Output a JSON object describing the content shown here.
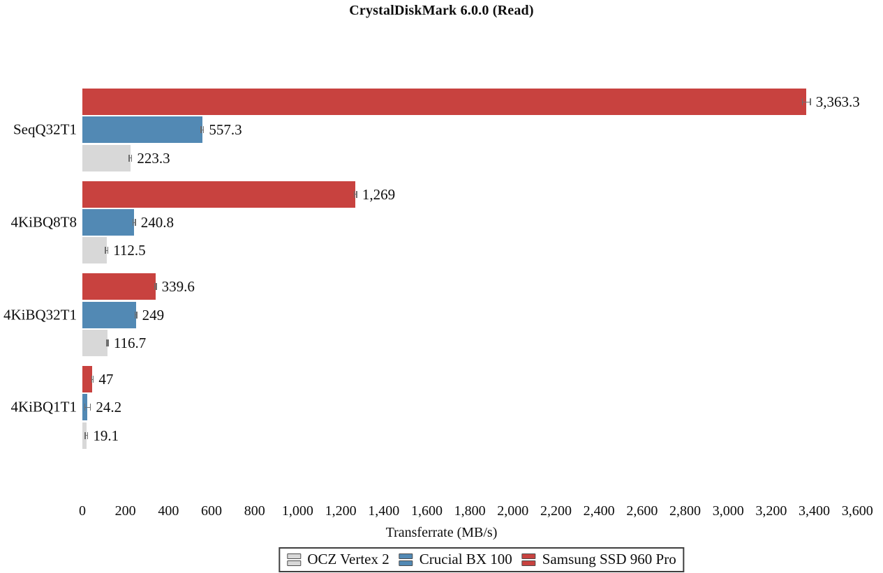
{
  "chart_data": {
    "type": "bar",
    "orientation": "horizontal",
    "title": "CrystalDiskMark 6.0.0 (Read)",
    "categories": [
      "SeqQ32T1",
      "4KiBQ8T8",
      "4KiBQ32T1",
      "4KiBQ1T1"
    ],
    "series": [
      {
        "name": "Samsung SSD 960 Pro",
        "color": "#c8423f",
        "values": [
          3363.3,
          1269,
          339.6,
          47
        ],
        "labels": [
          "3,363.3",
          "1,269",
          "339.6",
          "47"
        ],
        "errors": [
          21,
          8,
          6,
          6
        ]
      },
      {
        "name": "Crucial BX 100",
        "color": "#5289b4",
        "values": [
          557.3,
          240.8,
          249,
          24.2
        ],
        "labels": [
          "557.3",
          "240.8",
          "249",
          "24.2"
        ],
        "errors": [
          8,
          8,
          6,
          16
        ]
      },
      {
        "name": "OCZ Vertex 2",
        "color": "#d8d8d8",
        "values": [
          223.3,
          112.5,
          116.7,
          19.1
        ],
        "labels": [
          "223.3",
          "112.5",
          "116.7",
          "19.1"
        ],
        "errors": [
          8,
          8,
          6,
          8
        ]
      }
    ],
    "xlabel": "Transferrate (MB/s)",
    "xlim": [
      0,
      3600
    ],
    "xtick_step": 200,
    "xtick_labels": [
      "0",
      "200",
      "400",
      "600",
      "800",
      "1,000",
      "1,200",
      "1,400",
      "1,600",
      "1,800",
      "2,000",
      "2,200",
      "2,400",
      "2,600",
      "2,800",
      "3,000",
      "3,200",
      "3,400",
      "3,600"
    ],
    "grid": false,
    "error_bars": true,
    "legend": {
      "position": "bottom",
      "entries": [
        "OCZ Vertex 2",
        "Crucial BX 100",
        "Samsung SSD 960 Pro"
      ]
    }
  }
}
